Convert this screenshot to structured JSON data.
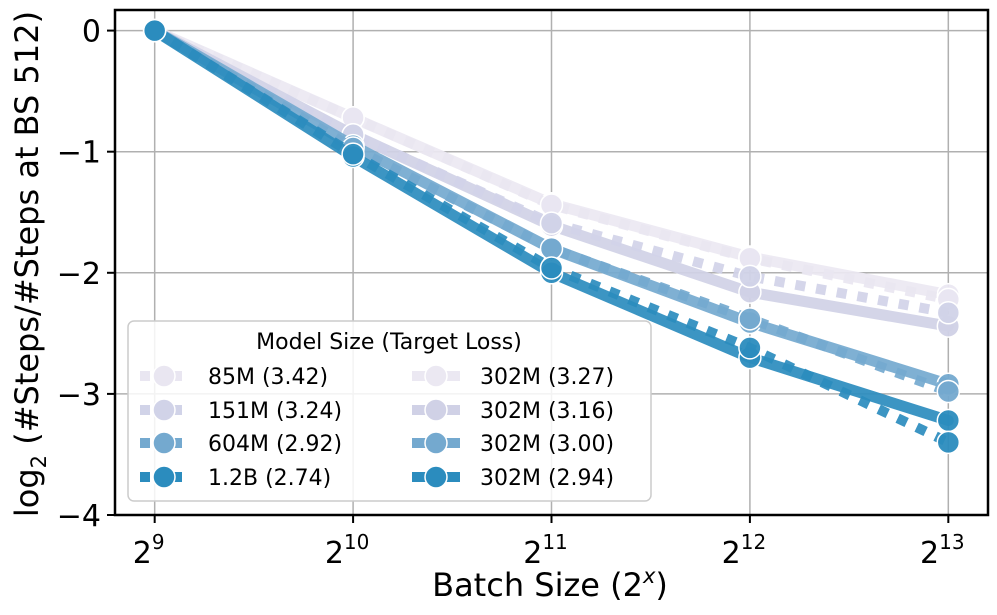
{
  "chart_data": {
    "type": "line",
    "xlabel": "Batch Size (2^x)",
    "xlabel_prefix": "Batch Size (2",
    "xlabel_sup": "x",
    "xlabel_suffix": ")",
    "ylabel": "log2 (#Steps/#Steps at BS 512)",
    "ylabel_prefix": "log",
    "ylabel_sub": "2",
    "ylabel_suffix": " (#Steps/#Steps at BS 512)",
    "x": [
      9,
      10,
      11,
      12,
      13
    ],
    "x_tick_labels": [
      {
        "base": "2",
        "exp": "9"
      },
      {
        "base": "2",
        "exp": "10"
      },
      {
        "base": "2",
        "exp": "11"
      },
      {
        "base": "2",
        "exp": "12"
      },
      {
        "base": "2",
        "exp": "13"
      }
    ],
    "y_ticks": [
      0,
      -1,
      -2,
      -3,
      -4
    ],
    "y_tick_labels": [
      "0",
      "−1",
      "−2",
      "−3",
      "−4"
    ],
    "xlim": [
      8.8,
      13.2
    ],
    "ylim": [
      -4.0,
      0.17
    ],
    "grid": true,
    "legend": {
      "title": "Model Size (Target Loss)",
      "placement": "lower-left"
    },
    "series": [
      {
        "name": "85M (3.42)",
        "style": "dotted",
        "color": "#e9e6f1",
        "values": [
          0,
          -0.72,
          -1.44,
          -1.88,
          -2.22
        ]
      },
      {
        "name": "151M (3.24)",
        "style": "dotted",
        "color": "#d1d3e8",
        "values": [
          0,
          -0.86,
          -1.59,
          -2.03,
          -2.33
        ]
      },
      {
        "name": "604M (2.92)",
        "style": "dotted",
        "color": "#74a9cf",
        "values": [
          0,
          -0.97,
          -1.8,
          -2.38,
          -2.98
        ]
      },
      {
        "name": "1.2B (2.74)",
        "style": "dotted",
        "color": "#2b8cbe",
        "values": [
          0,
          -1.02,
          -1.96,
          -2.62,
          -3.4
        ]
      },
      {
        "name": "302M (3.27)",
        "style": "solid",
        "color": "#ebe8f2",
        "values": [
          0,
          -0.72,
          -1.43,
          -1.87,
          -2.18
        ]
      },
      {
        "name": "302M (3.16)",
        "style": "solid",
        "color": "#d0d1e6",
        "values": [
          0,
          -0.86,
          -1.61,
          -2.16,
          -2.44
        ]
      },
      {
        "name": "302M (3.00)",
        "style": "solid",
        "color": "#74a9cf",
        "values": [
          0,
          -0.95,
          -1.8,
          -2.41,
          -2.92
        ]
      },
      {
        "name": "302M (2.94)",
        "style": "solid",
        "color": "#2b8cbe",
        "values": [
          0,
          -1.04,
          -2.0,
          -2.7,
          -3.22
        ]
      }
    ]
  }
}
